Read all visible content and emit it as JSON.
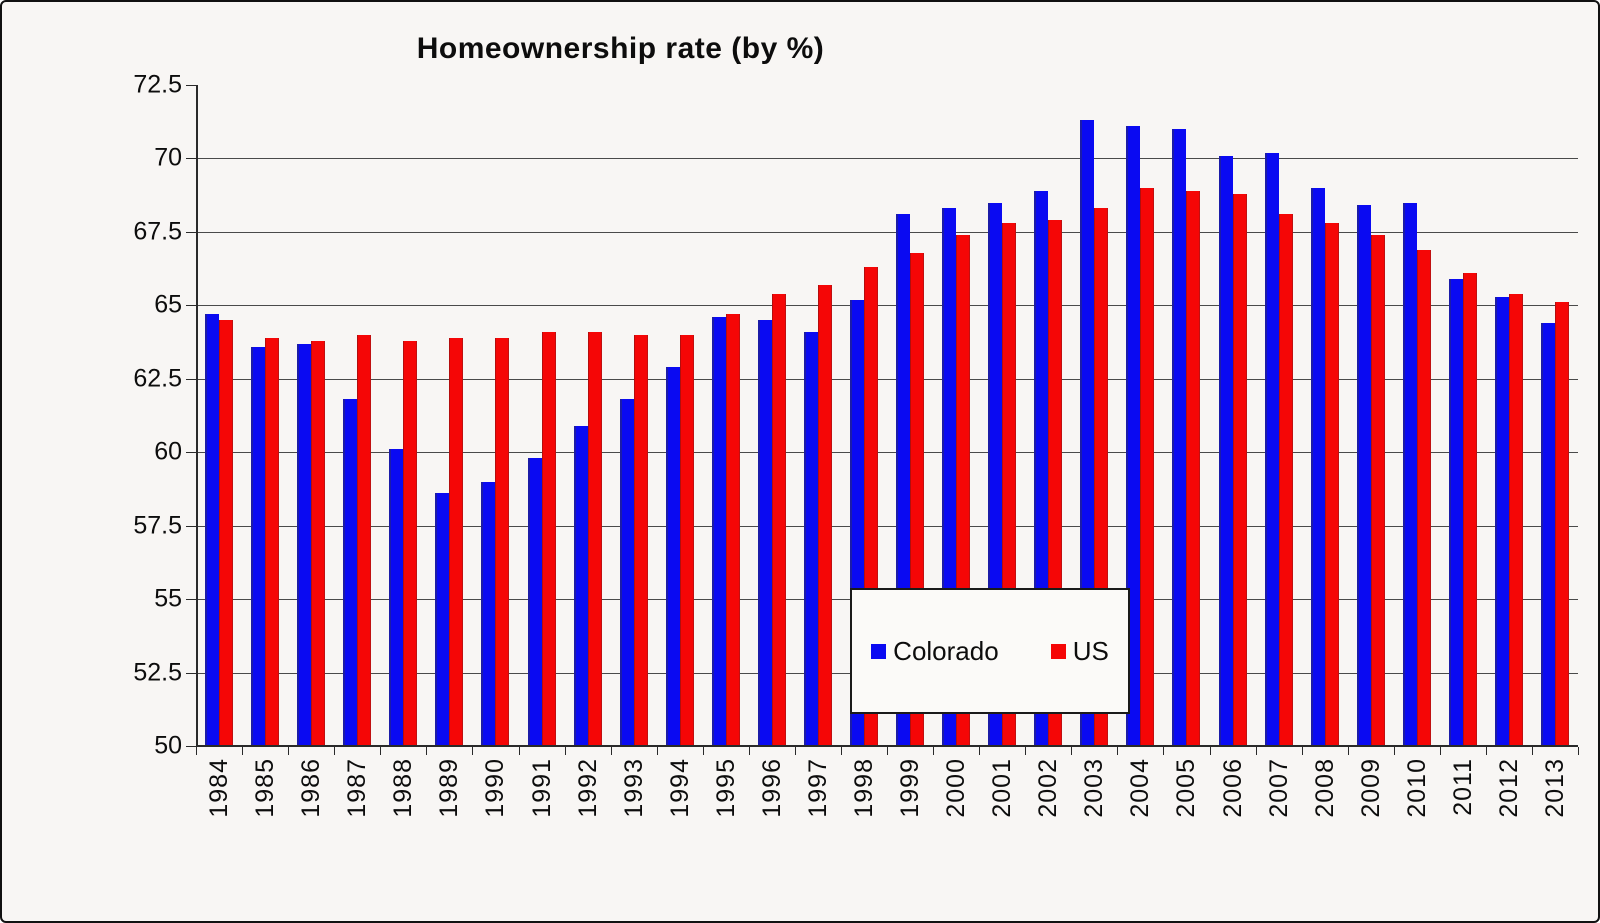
{
  "chart_data": {
    "type": "bar",
    "title": "Homeownership rate (by %)",
    "xlabel": "",
    "ylabel": "",
    "ylim": [
      50,
      72.5
    ],
    "ytick_values": [
      50,
      52.5,
      55,
      57.5,
      60,
      62.5,
      65,
      67.5,
      70,
      72.5
    ],
    "gridline_values": [
      52.5,
      55,
      57.5,
      60,
      62.5,
      65,
      67.5,
      70
    ],
    "grid": "on",
    "legend_position": "center-overlay",
    "categories": [
      "1984",
      "1985",
      "1986",
      "1987",
      "1988",
      "1989",
      "1990",
      "1991",
      "1992",
      "1993",
      "1994",
      "1995",
      "1996",
      "1997",
      "1998",
      "1999",
      "2000",
      "2001",
      "2002",
      "2003",
      "2004",
      "2005",
      "2006",
      "2007",
      "2008",
      "2009",
      "2010",
      "2011",
      "2012",
      "2013"
    ],
    "series": [
      {
        "name": "Colorado",
        "color": "#0a0af2",
        "values": [
          64.7,
          63.6,
          63.7,
          61.8,
          60.1,
          58.6,
          59.0,
          59.8,
          60.9,
          61.8,
          62.9,
          64.6,
          64.5,
          64.1,
          65.2,
          68.1,
          68.3,
          68.5,
          68.9,
          71.3,
          71.1,
          71.0,
          70.1,
          70.2,
          69.0,
          68.4,
          68.5,
          65.9,
          65.3,
          64.4
        ]
      },
      {
        "name": "US",
        "color": "#f50606",
        "values": [
          64.5,
          63.9,
          63.8,
          64.0,
          63.8,
          63.9,
          63.9,
          64.1,
          64.1,
          64.0,
          64.0,
          64.7,
          65.4,
          65.7,
          66.3,
          66.8,
          67.4,
          67.8,
          67.9,
          68.3,
          69.0,
          68.9,
          68.8,
          68.1,
          67.8,
          67.4,
          66.9,
          66.1,
          65.4,
          65.1
        ]
      }
    ]
  }
}
